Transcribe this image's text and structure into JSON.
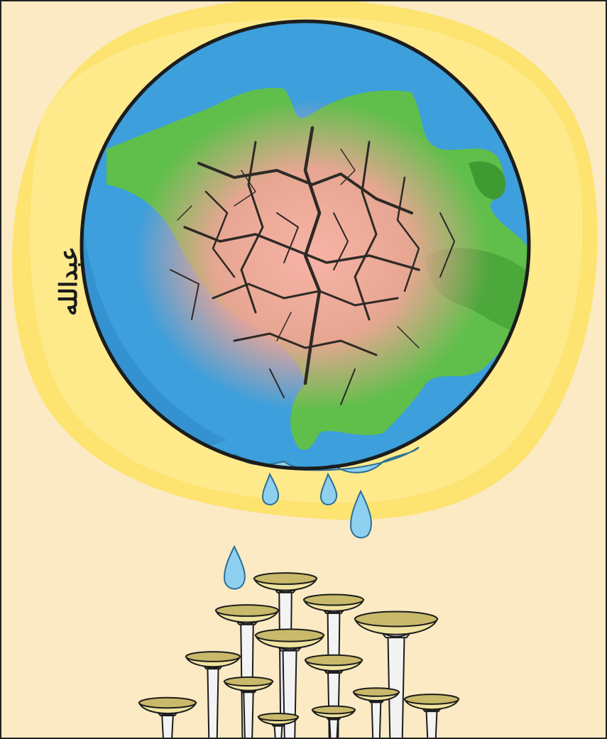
{
  "cartoon": {
    "signature": "عبدالله",
    "colors": {
      "background": "#fbeac4",
      "glow": "#fde36a",
      "glow_outer": "#fff0a8",
      "ocean": "#3d9fdc",
      "ocean_dark": "#2b86c6",
      "land": "#5fbf4a",
      "land_dark": "#3f9a32",
      "dry_center": "#f2a99a",
      "crack": "#2e2a26",
      "drop": "#8fd0f0",
      "drop_edge": "#2b6f96",
      "bowl": "#efe3a0",
      "bowl_rim": "#c9b96a",
      "hand": "#f3f3f3",
      "ink": "#1c1c1c"
    },
    "drops": [
      {
        "icon": "water-drop-icon"
      },
      {
        "icon": "water-drop-icon"
      },
      {
        "icon": "water-drop-icon"
      },
      {
        "icon": "water-drop-icon"
      }
    ],
    "bowls": [
      {
        "icon": "bowl-hand-icon"
      },
      {
        "icon": "bowl-hand-icon"
      },
      {
        "icon": "bowl-hand-icon"
      },
      {
        "icon": "bowl-hand-icon"
      },
      {
        "icon": "bowl-hand-icon"
      },
      {
        "icon": "bowl-hand-icon"
      },
      {
        "icon": "bowl-hand-icon"
      },
      {
        "icon": "bowl-hand-icon"
      },
      {
        "icon": "bowl-hand-icon"
      },
      {
        "icon": "bowl-hand-icon"
      },
      {
        "icon": "bowl-hand-icon"
      },
      {
        "icon": "bowl-hand-icon"
      },
      {
        "icon": "bowl-hand-icon"
      }
    ]
  }
}
